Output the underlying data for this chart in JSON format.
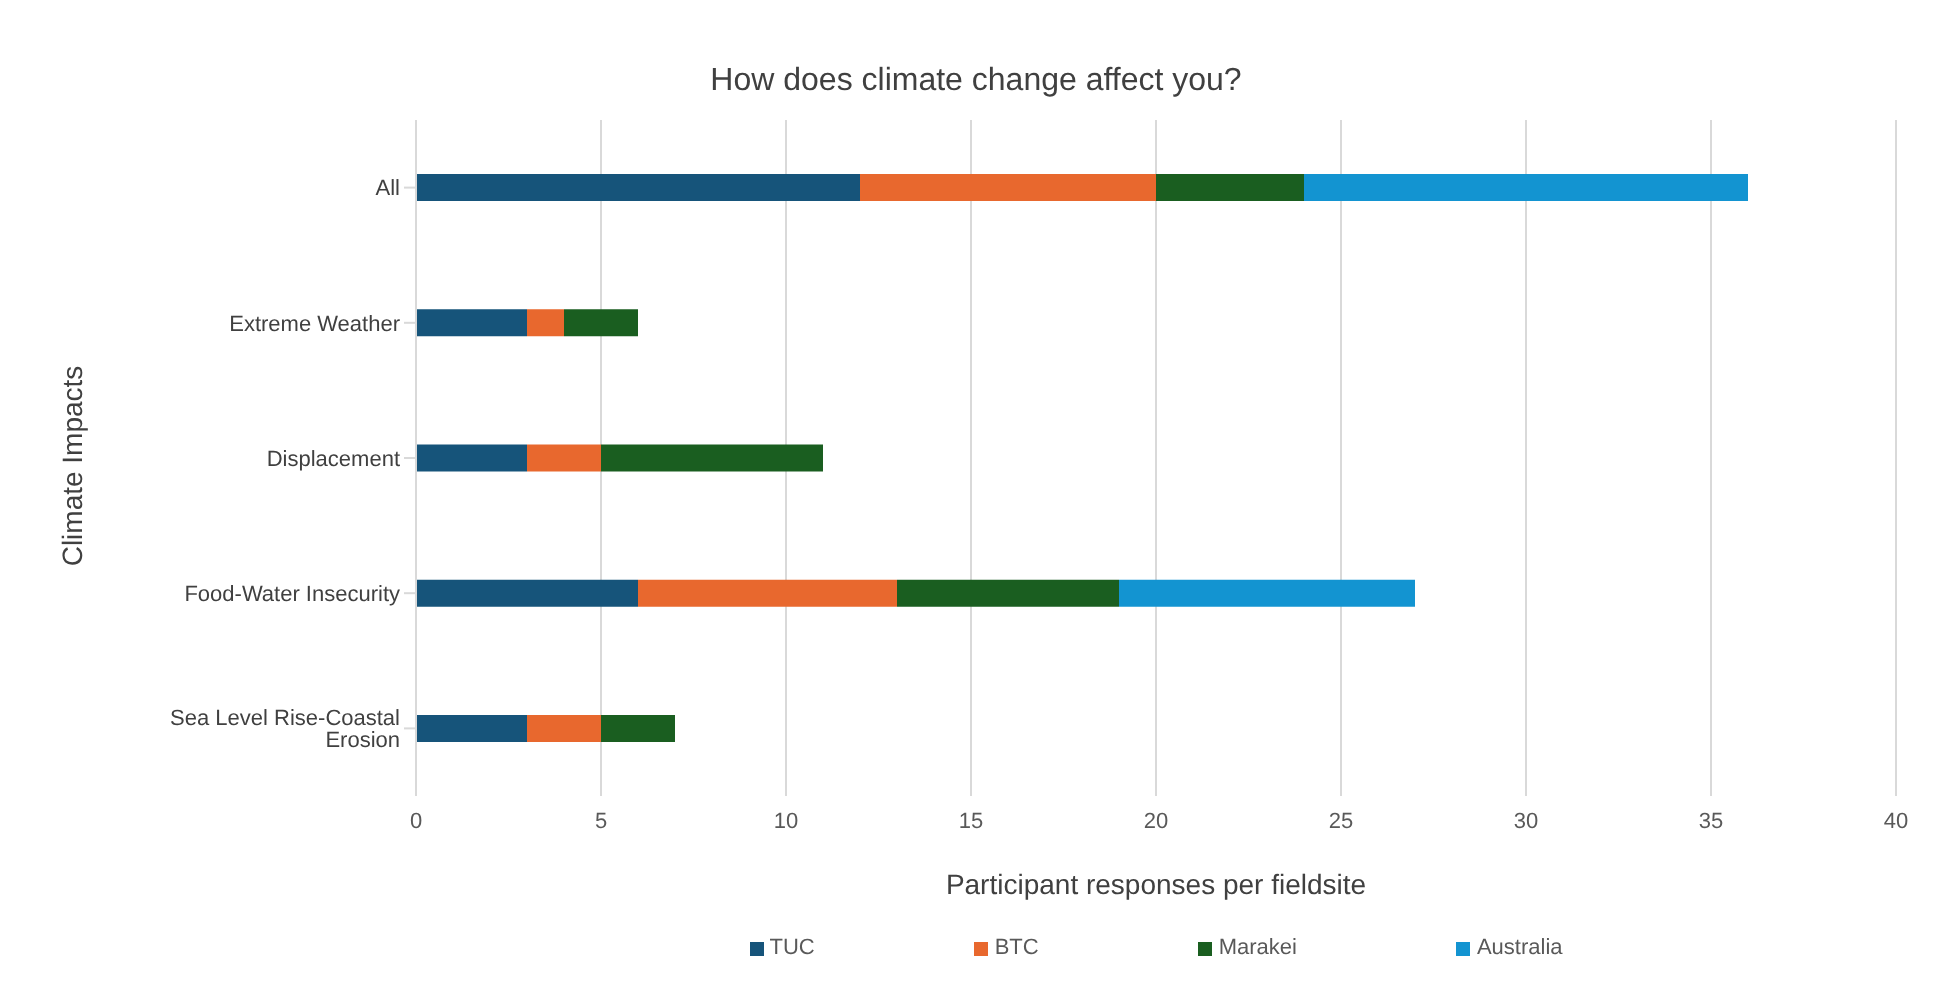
{
  "chart_data": {
    "type": "bar",
    "orientation": "horizontal",
    "stacked": true,
    "title": "How does climate change affect you?",
    "xlabel": "Participant responses per fieldsite",
    "ylabel": "Climate Impacts",
    "categories": [
      "All",
      "Extreme Weather",
      "Displacement",
      "Food-Water Insecurity",
      "Sea Level Rise-Coastal Erosion"
    ],
    "series": [
      {
        "name": "TUC",
        "color": "#16547a",
        "values": [
          12,
          3,
          3,
          6,
          3
        ]
      },
      {
        "name": "BTC",
        "color": "#e8682e",
        "values": [
          8,
          1,
          2,
          7,
          2
        ]
      },
      {
        "name": "Marakei",
        "color": "#1a5e20",
        "values": [
          4,
          2,
          6,
          6,
          2
        ]
      },
      {
        "name": "Australia",
        "color": "#1394d1",
        "values": [
          12,
          null,
          null,
          8,
          null
        ]
      }
    ],
    "xlim": [
      0,
      40
    ],
    "xticks": [
      0,
      5,
      10,
      15,
      20,
      25,
      30,
      35,
      40
    ],
    "grid": "x",
    "legend": "bottom"
  }
}
